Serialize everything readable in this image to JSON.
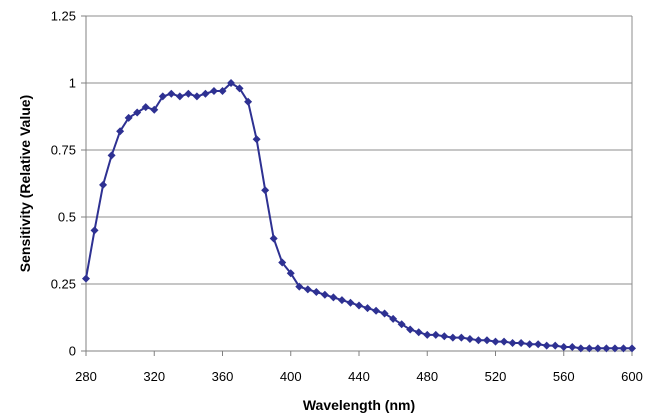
{
  "chart_data": {
    "type": "line",
    "xlabel": "Wavelength (nm)",
    "ylabel": "Sensitivity (Relative Value)",
    "xlim": [
      280,
      600
    ],
    "ylim": [
      0,
      1.25
    ],
    "x_ticks": [
      "280",
      "320",
      "360",
      "400",
      "440",
      "480",
      "520",
      "560",
      "600"
    ],
    "y_ticks": [
      "0",
      "0.25",
      "0.5",
      "0.75",
      "1",
      "1.25"
    ],
    "grid": "horizontal",
    "legend": "none",
    "series": [
      {
        "color": "#2e3192",
        "marker": "diamond",
        "x": [
          280,
          285,
          290,
          295,
          300,
          305,
          310,
          315,
          320,
          325,
          330,
          335,
          340,
          345,
          350,
          355,
          360,
          365,
          370,
          375,
          380,
          385,
          390,
          395,
          400,
          405,
          410,
          415,
          420,
          425,
          430,
          435,
          440,
          445,
          450,
          455,
          460,
          465,
          470,
          475,
          480,
          485,
          490,
          495,
          500,
          505,
          510,
          515,
          520,
          525,
          530,
          535,
          540,
          545,
          550,
          555,
          560,
          565,
          570,
          575,
          580,
          585,
          590,
          595,
          600
        ],
        "values": [
          0.27,
          0.45,
          0.62,
          0.73,
          0.82,
          0.87,
          0.89,
          0.91,
          0.9,
          0.95,
          0.96,
          0.95,
          0.96,
          0.95,
          0.96,
          0.97,
          0.97,
          1.0,
          0.98,
          0.93,
          0.79,
          0.6,
          0.42,
          0.33,
          0.29,
          0.24,
          0.23,
          0.22,
          0.21,
          0.2,
          0.19,
          0.18,
          0.17,
          0.16,
          0.15,
          0.14,
          0.12,
          0.1,
          0.08,
          0.07,
          0.06,
          0.06,
          0.055,
          0.05,
          0.05,
          0.045,
          0.04,
          0.04,
          0.035,
          0.035,
          0.03,
          0.03,
          0.025,
          0.025,
          0.02,
          0.02,
          0.015,
          0.015,
          0.01,
          0.01,
          0.01,
          0.01,
          0.01,
          0.01,
          0.01
        ]
      }
    ]
  }
}
